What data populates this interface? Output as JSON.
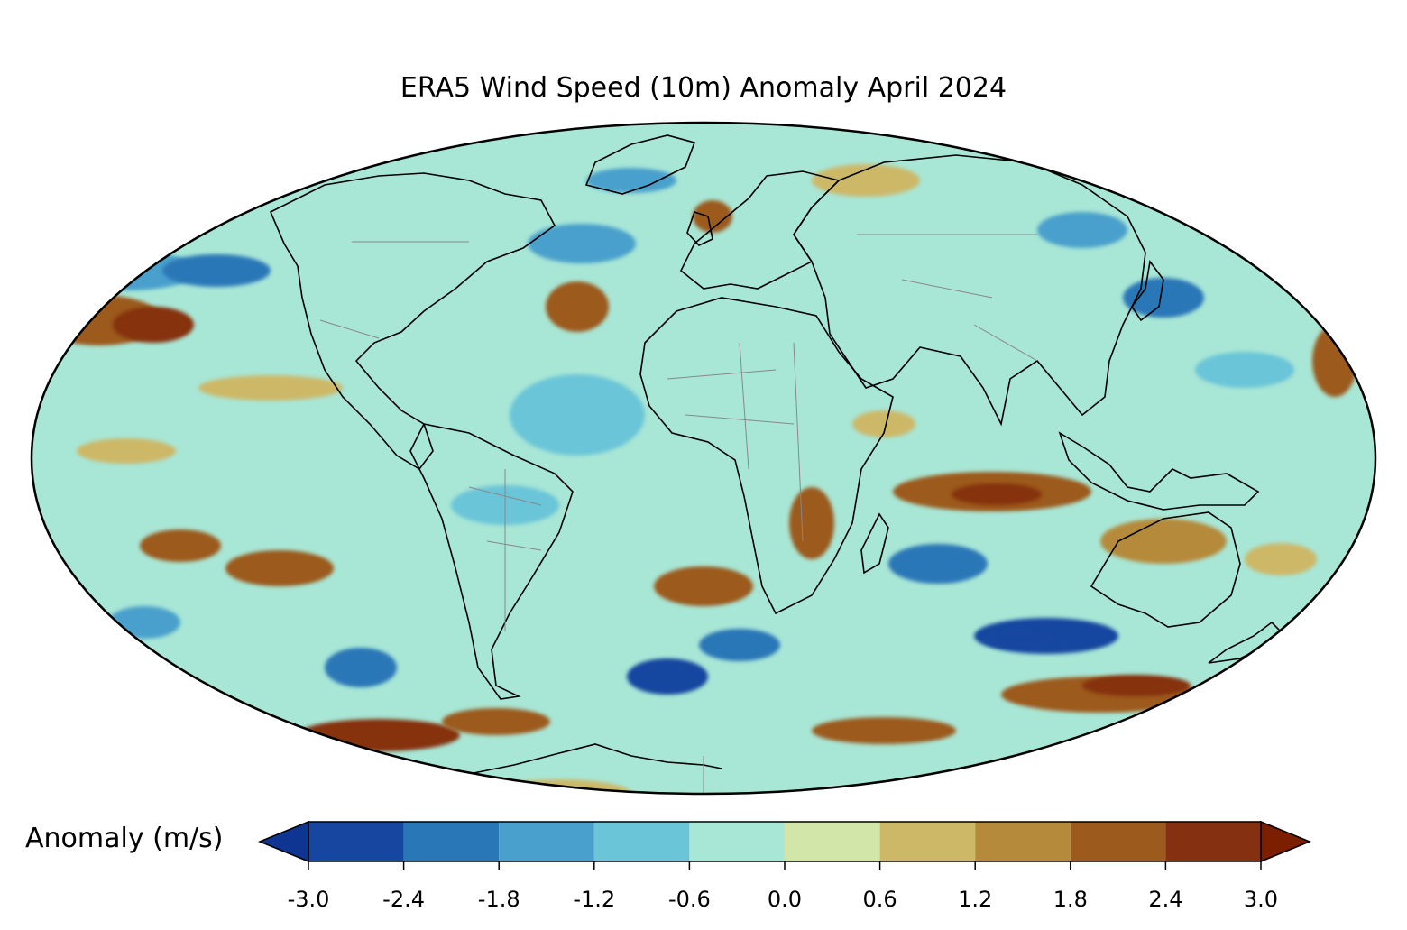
{
  "title": "ERA5 Wind Speed (10m) Anomaly April 2024",
  "colorbar": {
    "label": "Anomaly (m/s)",
    "ticks": [
      "-3.0",
      "-2.4",
      "-1.8",
      "-1.2",
      "-0.6",
      "0.0",
      "0.6",
      "1.2",
      "1.8",
      "2.4",
      "3.0"
    ],
    "tick_values": [
      -3.0,
      -2.4,
      -1.8,
      -1.2,
      -0.6,
      0.0,
      0.6,
      1.2,
      1.8,
      2.4,
      3.0
    ],
    "colors": [
      "#1646a0",
      "#2a77b8",
      "#4aa0cc",
      "#6bc5d8",
      "#a8e6d6",
      "#d2e6a9",
      "#cdb868",
      "#b58a3a",
      "#9c5a1c",
      "#853010"
    ],
    "under_color": "#0e3592",
    "over_color": "#7c1e00",
    "extend": "both"
  },
  "map": {
    "projection": "mollweide",
    "region": "global",
    "ocean_base_color": "#a8e6d6",
    "land_base_color": "#d2e6a9"
  }
}
